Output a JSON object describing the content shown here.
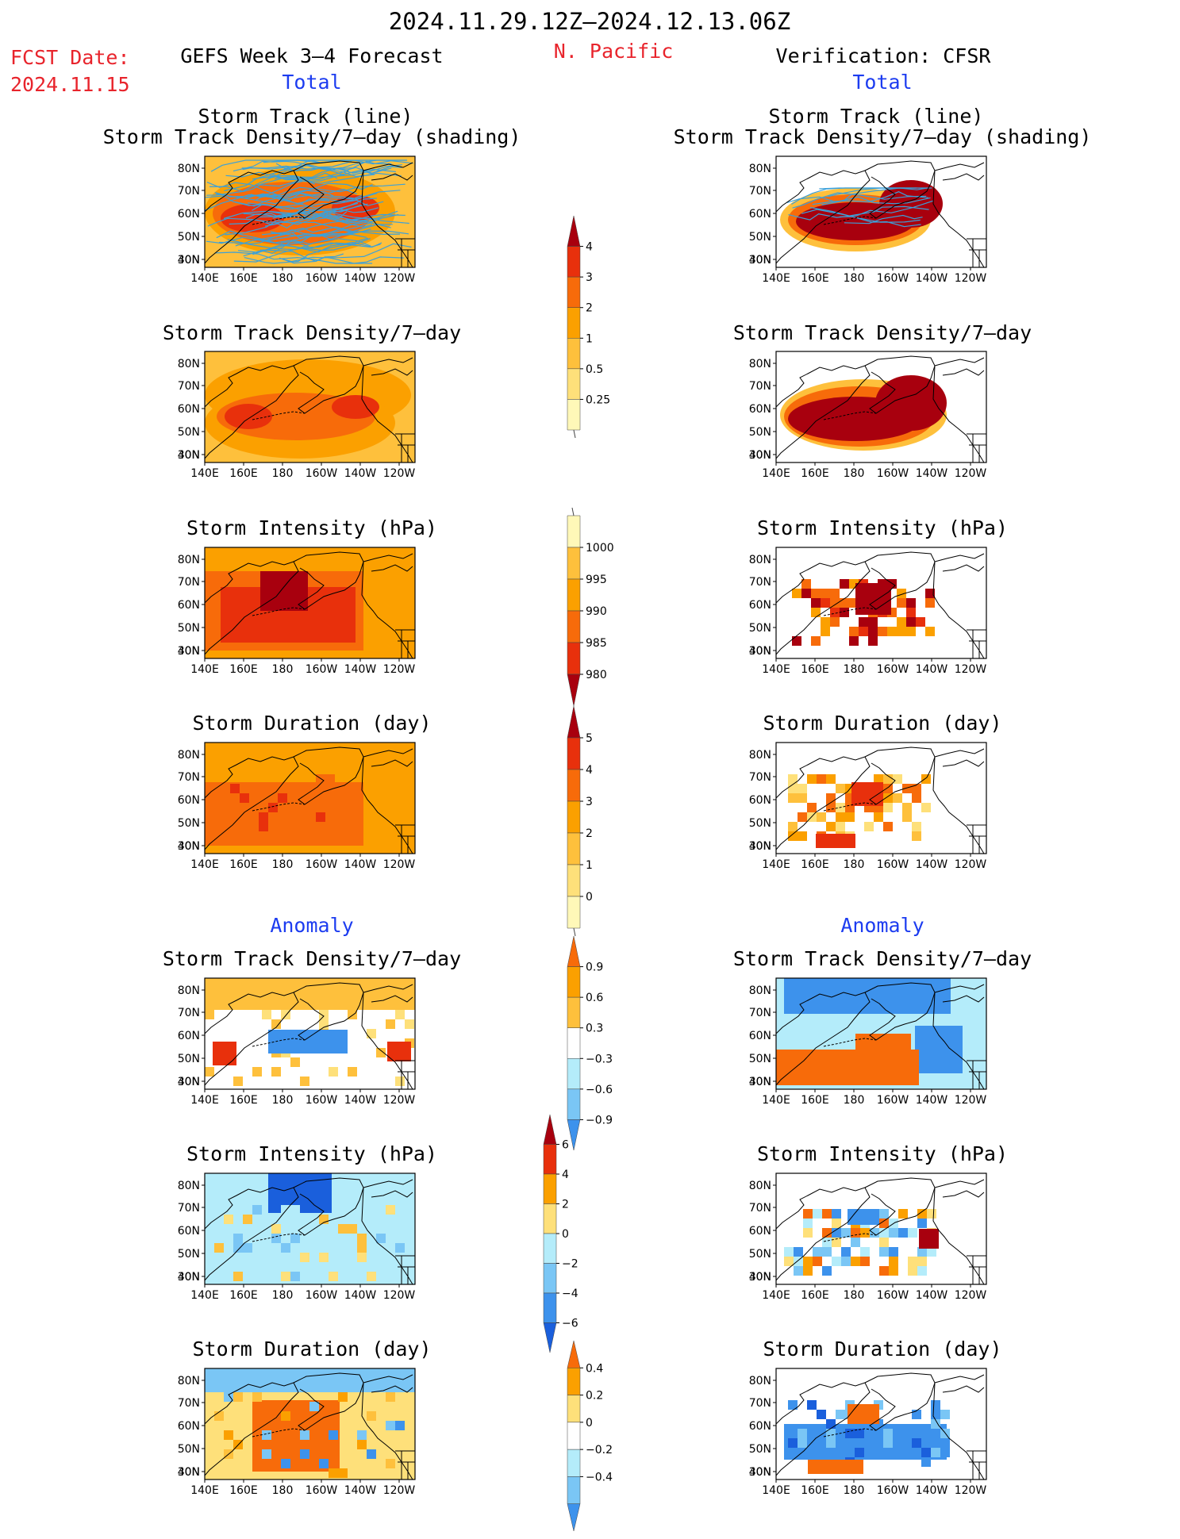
{
  "header": {
    "main_title": "2024.11.29.12Z–2024.12.13.06Z",
    "fcst_label": "FCST Date:",
    "fcst_date": "2024.11.15",
    "model_title": "GEFS Week 3–4 Forecast",
    "region": "N. Pacific",
    "verification_title": "Verification: CFSR"
  },
  "sections": {
    "total": "Total",
    "anomaly": "Anomaly"
  },
  "panel_titles": {
    "track_line": "Storm Track (line)",
    "track_density_shading": "Storm Track Density/7–day (shading)",
    "track_density": "Storm Track Density/7–day",
    "intensity": "Storm Intensity (hPa)",
    "duration": "Storm Duration (day)"
  },
  "axes": {
    "lat_labels": [
      "80N",
      "70N",
      "60N",
      "50N",
      "40N",
      "30N"
    ],
    "lon_labels": [
      "140E",
      "160E",
      "180",
      "160W",
      "140W",
      "120W"
    ]
  },
  "colors": {
    "yellow_pale": "#fff8b8",
    "yellow": "#fee07a",
    "orange_light": "#fec03c",
    "orange": "#fba000",
    "orange_dark": "#f76b0a",
    "red": "#e8300c",
    "darkred": "#a8000e",
    "lightblue": "#b4ecfa",
    "midblue": "#7ac6f5",
    "blue": "#3d92ec",
    "darkblue": "#1a5fdc",
    "track_line": "#3ca0d8"
  },
  "chart_data": {
    "type": "heatmap",
    "layout": "two columns (forecast left, verification right), seven rows of regional maps of the North Pacific",
    "shared_colorbars": [
      {
        "id": "cb-density",
        "labels": [
          "4",
          "3",
          "2",
          "1",
          "0.5",
          "0.25"
        ]
      },
      {
        "id": "cb-intensity",
        "labels": [
          "1000",
          "995",
          "990",
          "985",
          "980"
        ]
      },
      {
        "id": "cb-duration",
        "labels": [
          "5",
          "4",
          "3",
          "2",
          "1",
          "0"
        ]
      },
      {
        "id": "cb-density-anom",
        "labels": [
          "0.9",
          "0.6",
          "0.3",
          "−0.3",
          "−0.6",
          "−0.9"
        ]
      },
      {
        "id": "cb-intensity-anom",
        "labels": [
          "6",
          "4",
          "2",
          "0",
          "−2",
          "−4",
          "−6"
        ]
      },
      {
        "id": "cb-duration-anom",
        "labels": [
          "0.4",
          "0.2",
          "0",
          "−0.2",
          "−0.4"
        ]
      }
    ],
    "panels": [
      {
        "row": 1,
        "column": "forecast",
        "title": "Storm Track (line) / Storm Track Density/7–day (shading)",
        "field": "track density",
        "mean_level": 2
      },
      {
        "row": 1,
        "column": "verification",
        "title": "Storm Track (line) / Storm Track Density/7–day (shading)",
        "field": "track density",
        "mean_level": 4
      },
      {
        "row": 2,
        "column": "forecast",
        "title": "Storm Track Density/7–day",
        "field": "track density",
        "mean_level": 2
      },
      {
        "row": 2,
        "column": "verification",
        "title": "Storm Track Density/7–day",
        "field": "track density",
        "mean_level": 4
      },
      {
        "row": 3,
        "column": "forecast",
        "title": "Storm Intensity (hPa)",
        "field": "intensity",
        "approx_range_hPa": [
          980,
          995
        ]
      },
      {
        "row": 3,
        "column": "verification",
        "title": "Storm Intensity (hPa)",
        "field": "intensity",
        "approx_range_hPa": [
          980,
          995
        ]
      },
      {
        "row": 4,
        "column": "forecast",
        "title": "Storm Duration (day)",
        "field": "duration",
        "approx_range_day": [
          2,
          4
        ]
      },
      {
        "row": 4,
        "column": "verification",
        "title": "Storm Duration (day)",
        "field": "duration",
        "approx_range_day": [
          1,
          5
        ]
      },
      {
        "row": 5,
        "column": "forecast",
        "title": "Storm Track Density/7–day",
        "field": "track density anomaly",
        "approx_range": [
          -0.6,
          0.9
        ]
      },
      {
        "row": 5,
        "column": "verification",
        "title": "Storm Track Density/7–day",
        "field": "track density anomaly",
        "approx_range": [
          -0.9,
          0.9
        ]
      },
      {
        "row": 6,
        "column": "forecast",
        "title": "Storm Intensity (hPa)",
        "field": "intensity anomaly",
        "approx_range_hPa": [
          -6,
          4
        ]
      },
      {
        "row": 6,
        "column": "verification",
        "title": "Storm Intensity (hPa)",
        "field": "intensity anomaly",
        "approx_range_hPa": [
          -6,
          6
        ]
      },
      {
        "row": 7,
        "column": "forecast",
        "title": "Storm Duration (day)",
        "field": "duration anomaly",
        "approx_range_day": [
          -0.4,
          0.4
        ]
      },
      {
        "row": 7,
        "column": "verification",
        "title": "Storm Duration (day)",
        "field": "duration anomaly",
        "approx_range_day": [
          -0.4,
          0.4
        ]
      }
    ]
  }
}
